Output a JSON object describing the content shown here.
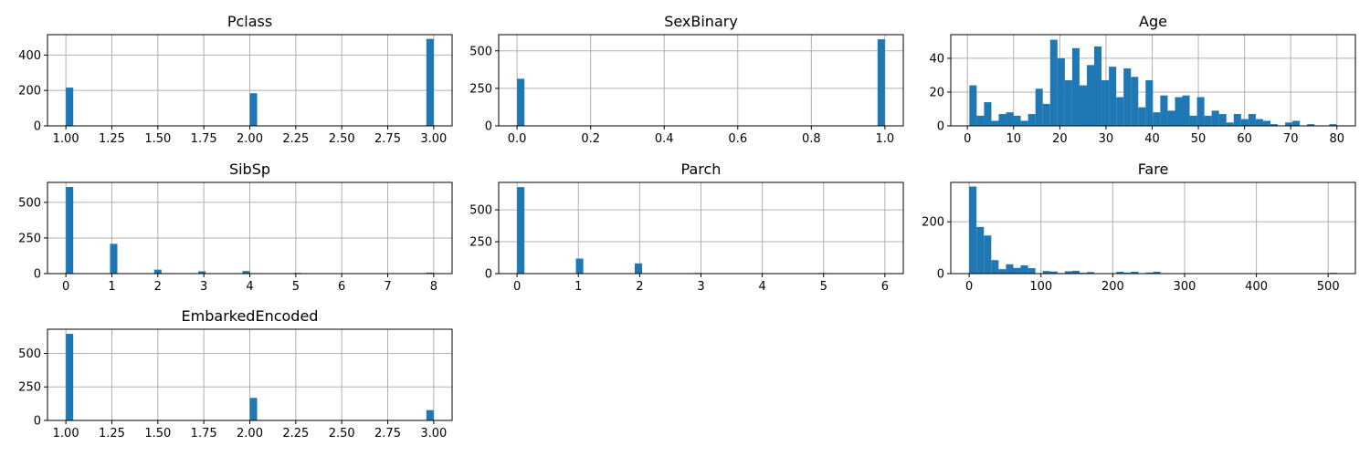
{
  "chart_data": [
    {
      "type": "bar",
      "title": "Pclass",
      "xlim": [
        0.9,
        3.1
      ],
      "ylim": [
        0,
        515
      ],
      "xticks": [
        1.0,
        1.25,
        1.5,
        1.75,
        2.0,
        2.25,
        2.5,
        2.75,
        3.0
      ],
      "xtick_labels": [
        "1.00",
        "1.25",
        "1.50",
        "1.75",
        "2.00",
        "2.25",
        "2.50",
        "2.75",
        "3.00"
      ],
      "yticks": [
        0,
        200,
        400
      ],
      "yticks_labels": [
        "0",
        "200",
        "400"
      ],
      "bin_width": 0.04,
      "bins": [
        {
          "x": 1.0,
          "value": 216
        },
        {
          "x": 2.0,
          "value": 184
        },
        {
          "x": 2.96,
          "value": 491
        }
      ],
      "color": "#1f77b4",
      "grid": true
    },
    {
      "type": "bar",
      "title": "SexBinary",
      "xlim": [
        -0.05,
        1.05
      ],
      "ylim": [
        0,
        608
      ],
      "xticks": [
        0.0,
        0.2,
        0.4,
        0.6,
        0.8,
        1.0
      ],
      "xtick_labels": [
        "0.0",
        "0.2",
        "0.4",
        "0.6",
        "0.8",
        "1.0"
      ],
      "yticks": [
        0,
        250,
        500
      ],
      "yticks_labels": [
        "0",
        "250",
        "500"
      ],
      "bin_width": 0.02,
      "bins": [
        {
          "x": 0.0,
          "value": 314
        },
        {
          "x": 0.98,
          "value": 577
        }
      ],
      "color": "#1f77b4",
      "grid": true
    },
    {
      "type": "bar",
      "title": "Age",
      "xlim": [
        -3.6,
        84.0
      ],
      "ylim": [
        0,
        54
      ],
      "xticks": [
        0,
        10,
        20,
        30,
        40,
        50,
        60,
        70,
        80
      ],
      "xtick_labels": [
        "0",
        "10",
        "20",
        "30",
        "40",
        "50",
        "60",
        "70",
        "80"
      ],
      "yticks": [
        0,
        20,
        40
      ],
      "yticks_labels": [
        "0",
        "20",
        "40"
      ],
      "bin_width": 1.59,
      "bins": [
        {
          "x": 0.42,
          "value": 24
        },
        {
          "x": 2.01,
          "value": 6
        },
        {
          "x": 3.6,
          "value": 14
        },
        {
          "x": 5.19,
          "value": 3
        },
        {
          "x": 6.78,
          "value": 7
        },
        {
          "x": 8.37,
          "value": 8
        },
        {
          "x": 9.96,
          "value": 6
        },
        {
          "x": 11.55,
          "value": 3
        },
        {
          "x": 13.14,
          "value": 7
        },
        {
          "x": 14.73,
          "value": 22
        },
        {
          "x": 16.32,
          "value": 13
        },
        {
          "x": 17.91,
          "value": 51
        },
        {
          "x": 19.5,
          "value": 40
        },
        {
          "x": 21.09,
          "value": 27
        },
        {
          "x": 22.68,
          "value": 46
        },
        {
          "x": 24.27,
          "value": 24
        },
        {
          "x": 25.86,
          "value": 36
        },
        {
          "x": 27.45,
          "value": 47
        },
        {
          "x": 29.04,
          "value": 27
        },
        {
          "x": 30.63,
          "value": 35
        },
        {
          "x": 32.22,
          "value": 17
        },
        {
          "x": 33.81,
          "value": 34
        },
        {
          "x": 35.4,
          "value": 29
        },
        {
          "x": 36.99,
          "value": 11
        },
        {
          "x": 38.58,
          "value": 27
        },
        {
          "x": 40.17,
          "value": 8
        },
        {
          "x": 41.76,
          "value": 18
        },
        {
          "x": 43.35,
          "value": 9
        },
        {
          "x": 44.94,
          "value": 17
        },
        {
          "x": 46.53,
          "value": 18
        },
        {
          "x": 48.12,
          "value": 6
        },
        {
          "x": 49.71,
          "value": 17
        },
        {
          "x": 51.3,
          "value": 6
        },
        {
          "x": 52.89,
          "value": 9
        },
        {
          "x": 54.48,
          "value": 7
        },
        {
          "x": 56.07,
          "value": 2
        },
        {
          "x": 57.66,
          "value": 7
        },
        {
          "x": 59.25,
          "value": 4
        },
        {
          "x": 60.84,
          "value": 7
        },
        {
          "x": 62.43,
          "value": 4
        },
        {
          "x": 64.02,
          "value": 3
        },
        {
          "x": 65.61,
          "value": 1
        },
        {
          "x": 67.2,
          "value": 0
        },
        {
          "x": 68.79,
          "value": 2
        },
        {
          "x": 70.38,
          "value": 3
        },
        {
          "x": 71.97,
          "value": 0
        },
        {
          "x": 73.56,
          "value": 1
        },
        {
          "x": 75.15,
          "value": 0
        },
        {
          "x": 76.74,
          "value": 0
        },
        {
          "x": 78.33,
          "value": 1
        }
      ],
      "color": "#1f77b4",
      "grid": true
    },
    {
      "type": "bar",
      "title": "SibSp",
      "xlim": [
        -0.4,
        8.4
      ],
      "ylim": [
        0,
        640
      ],
      "xticks": [
        0,
        1,
        2,
        3,
        4,
        5,
        6,
        7,
        8
      ],
      "xtick_labels": [
        "0",
        "1",
        "2",
        "3",
        "4",
        "5",
        "6",
        "7",
        "8"
      ],
      "yticks": [
        0,
        250,
        500
      ],
      "yticks_labels": [
        "0",
        "250",
        "500"
      ],
      "bin_width": 0.16,
      "bins": [
        {
          "x": 0.0,
          "value": 608
        },
        {
          "x": 0.96,
          "value": 209
        },
        {
          "x": 1.92,
          "value": 28
        },
        {
          "x": 2.88,
          "value": 16
        },
        {
          "x": 3.84,
          "value": 18
        },
        {
          "x": 4.96,
          "value": 5
        },
        {
          "x": 7.84,
          "value": 7
        }
      ],
      "color": "#1f77b4",
      "grid": true
    },
    {
      "type": "bar",
      "title": "Parch",
      "xlim": [
        -0.3,
        6.3
      ],
      "ylim": [
        0,
        715
      ],
      "xticks": [
        0,
        1,
        2,
        3,
        4,
        5,
        6
      ],
      "xtick_labels": [
        "0",
        "1",
        "2",
        "3",
        "4",
        "5",
        "6"
      ],
      "yticks": [
        0,
        250,
        500
      ],
      "yticks_labels": [
        "0",
        "250",
        "500"
      ],
      "bin_width": 0.12,
      "bins": [
        {
          "x": 0.0,
          "value": 678
        },
        {
          "x": 0.96,
          "value": 118
        },
        {
          "x": 1.92,
          "value": 80
        },
        {
          "x": 2.88,
          "value": 5
        },
        {
          "x": 3.96,
          "value": 4
        },
        {
          "x": 4.92,
          "value": 5
        },
        {
          "x": 5.88,
          "value": 1
        }
      ],
      "color": "#1f77b4",
      "grid": true
    },
    {
      "type": "bar",
      "title": "Fare",
      "xlim": [
        -25.6,
        537.9
      ],
      "ylim": [
        0,
        352
      ],
      "xticks": [
        0,
        100,
        200,
        300,
        400,
        500
      ],
      "xtick_labels": [
        "0",
        "100",
        "200",
        "300",
        "400",
        "500"
      ],
      "yticks": [
        0,
        200
      ],
      "yticks_labels": [
        "0",
        "200"
      ],
      "bin_width": 10.25,
      "bins": [
        {
          "x": 0.0,
          "value": 336
        },
        {
          "x": 10.25,
          "value": 180
        },
        {
          "x": 20.5,
          "value": 147
        },
        {
          "x": 30.75,
          "value": 52
        },
        {
          "x": 41.0,
          "value": 17
        },
        {
          "x": 51.25,
          "value": 36
        },
        {
          "x": 61.5,
          "value": 22
        },
        {
          "x": 71.75,
          "value": 32
        },
        {
          "x": 82.0,
          "value": 21
        },
        {
          "x": 92.25,
          "value": 1
        },
        {
          "x": 102.5,
          "value": 10
        },
        {
          "x": 112.75,
          "value": 8
        },
        {
          "x": 123.0,
          "value": 2
        },
        {
          "x": 133.25,
          "value": 9
        },
        {
          "x": 143.5,
          "value": 11
        },
        {
          "x": 153.75,
          "value": 3
        },
        {
          "x": 164.0,
          "value": 6
        },
        {
          "x": 205.0,
          "value": 7
        },
        {
          "x": 215.25,
          "value": 4
        },
        {
          "x": 225.5,
          "value": 7
        },
        {
          "x": 246.0,
          "value": 4
        },
        {
          "x": 256.25,
          "value": 7
        },
        {
          "x": 502.25,
          "value": 3
        }
      ],
      "color": "#1f77b4",
      "grid": true
    },
    {
      "type": "bar",
      "title": "EmbarkedEncoded",
      "xlim": [
        0.9,
        3.1
      ],
      "ylim": [
        0,
        680
      ],
      "xticks": [
        1.0,
        1.25,
        1.5,
        1.75,
        2.0,
        2.25,
        2.5,
        2.75,
        3.0
      ],
      "xtick_labels": [
        "1.00",
        "1.25",
        "1.50",
        "1.75",
        "2.00",
        "2.25",
        "2.50",
        "2.75",
        "3.00"
      ],
      "yticks": [
        0,
        250,
        500
      ],
      "yticks_labels": [
        "0",
        "250",
        "500"
      ],
      "bin_width": 0.04,
      "bins": [
        {
          "x": 1.0,
          "value": 646
        },
        {
          "x": 2.0,
          "value": 168
        },
        {
          "x": 2.96,
          "value": 77
        }
      ],
      "color": "#1f77b4",
      "grid": true
    }
  ]
}
